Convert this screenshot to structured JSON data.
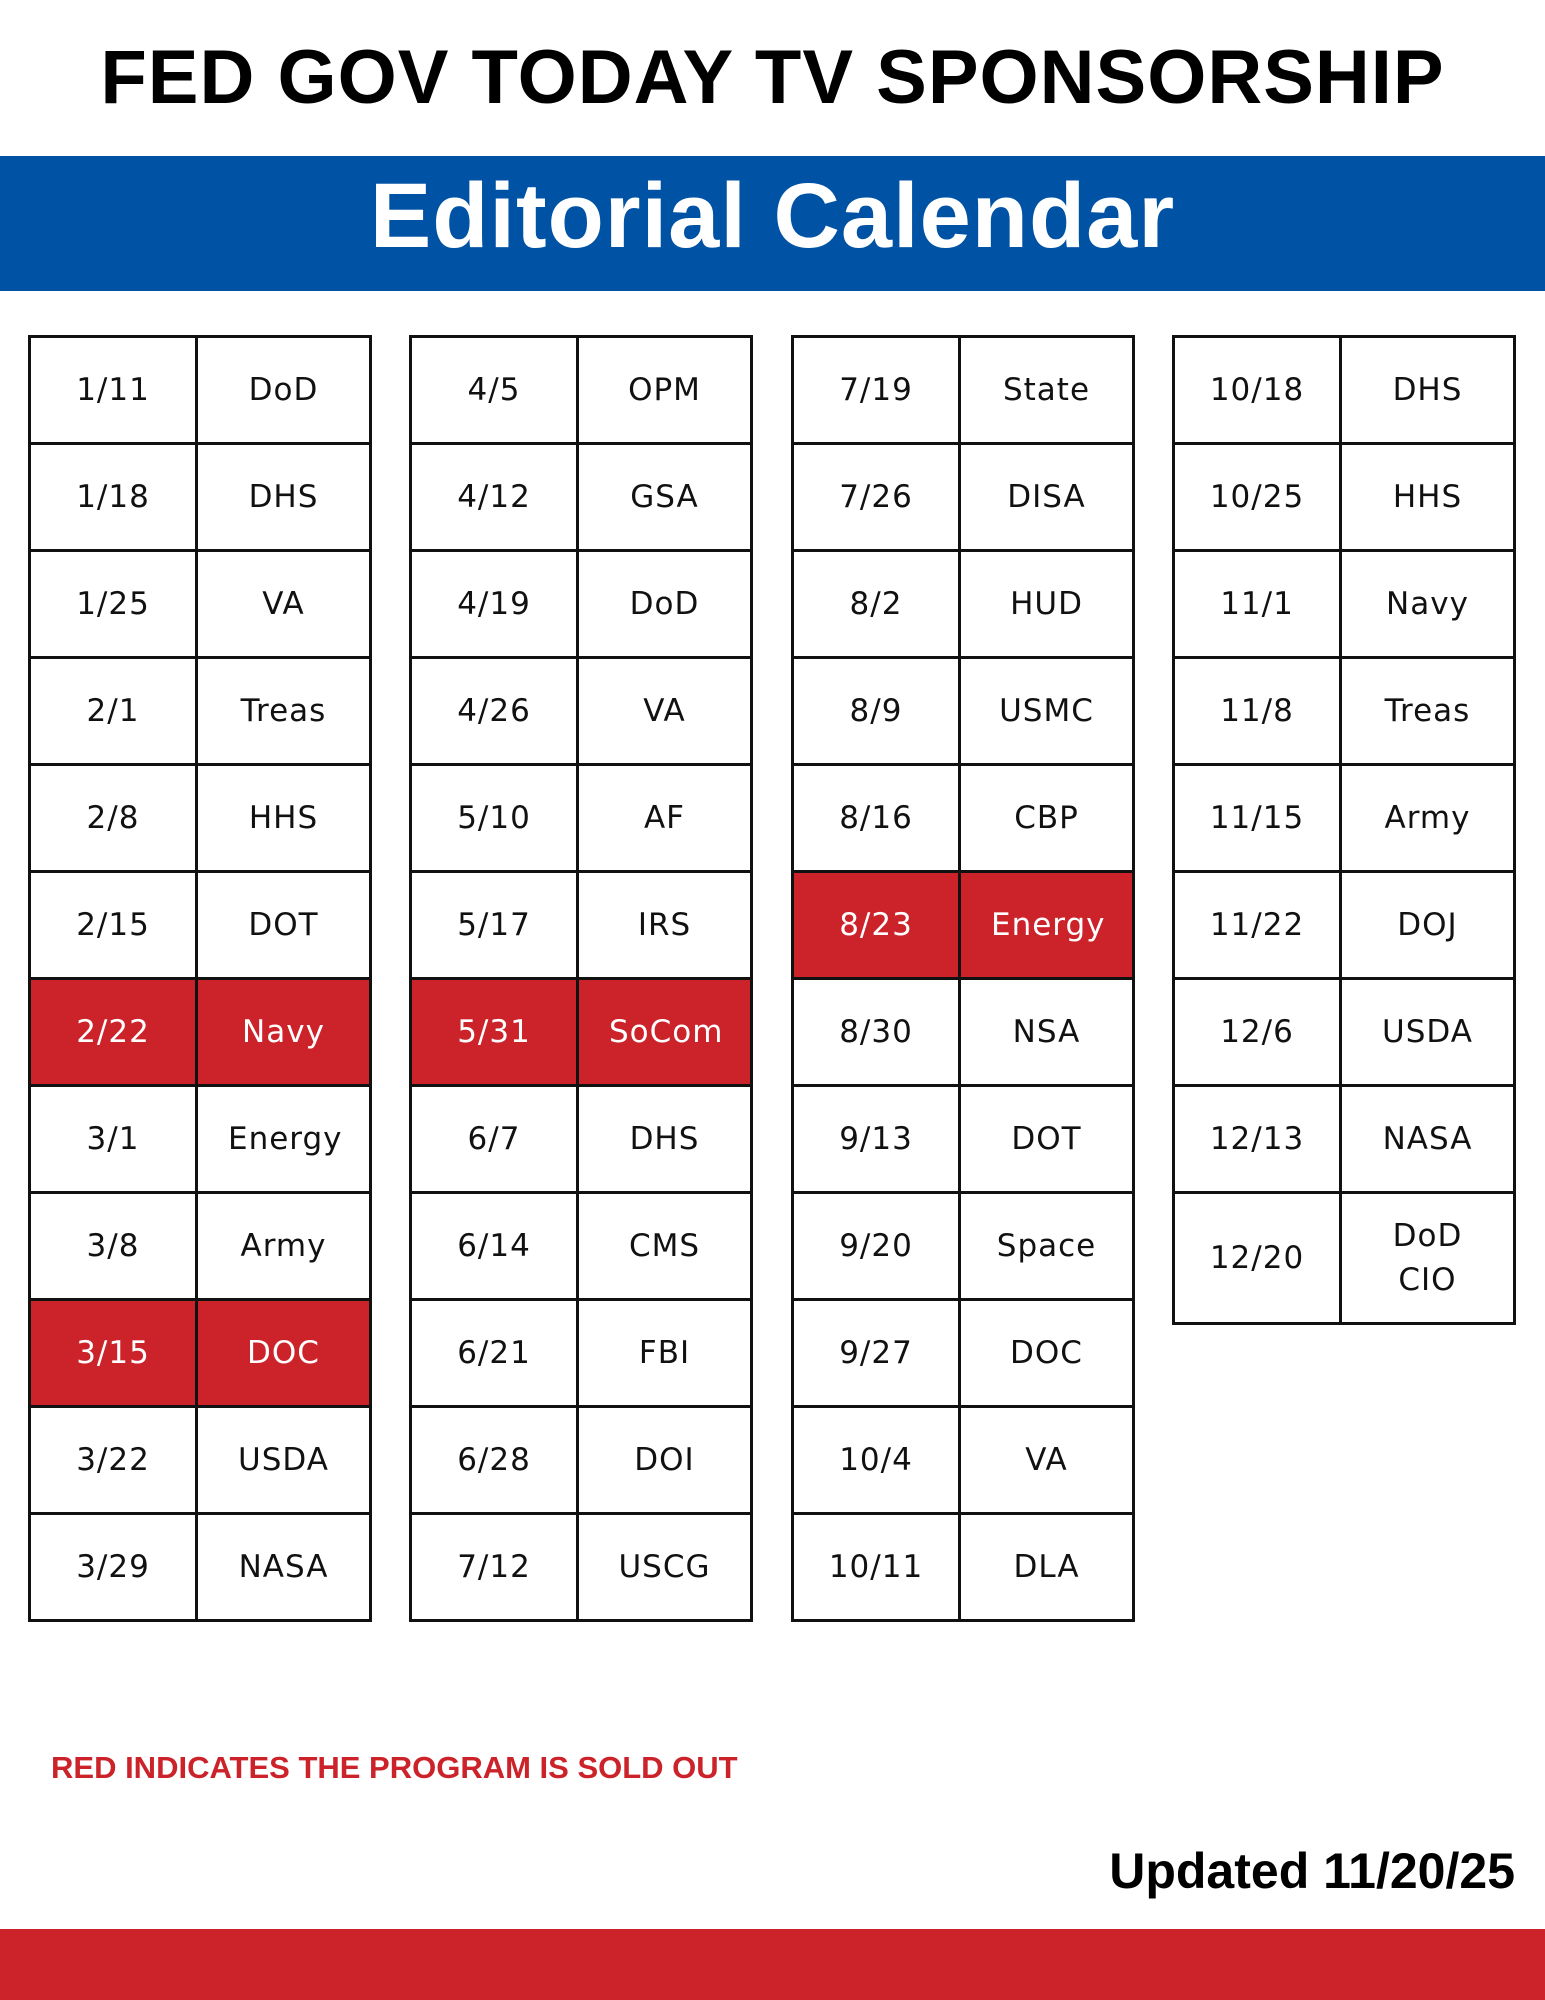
{
  "header": {
    "title": "FED GOV TODAY TV SPONSORSHIP",
    "subtitle": "Editorial Calendar"
  },
  "columns": [
    {
      "rows": [
        {
          "date": "1/11",
          "agency": "DoD",
          "sold_out": false
        },
        {
          "date": "1/18",
          "agency": "DHS",
          "sold_out": false
        },
        {
          "date": "1/25",
          "agency": "VA",
          "sold_out": false
        },
        {
          "date": "2/1",
          "agency": "Treas",
          "sold_out": false
        },
        {
          "date": "2/8",
          "agency": "HHS",
          "sold_out": false
        },
        {
          "date": "2/15",
          "agency": "DOT",
          "sold_out": false
        },
        {
          "date": "2/22",
          "agency": "Navy",
          "sold_out": true
        },
        {
          "date": "3/1",
          "agency": "Energy",
          "sold_out": false
        },
        {
          "date": "3/8",
          "agency": "Army",
          "sold_out": false
        },
        {
          "date": "3/15",
          "agency": "DOC",
          "sold_out": true
        },
        {
          "date": "3/22",
          "agency": "USDA",
          "sold_out": false
        },
        {
          "date": "3/29",
          "agency": "NASA",
          "sold_out": false
        }
      ]
    },
    {
      "rows": [
        {
          "date": "4/5",
          "agency": "OPM",
          "sold_out": false
        },
        {
          "date": "4/12",
          "agency": "GSA",
          "sold_out": false
        },
        {
          "date": "4/19",
          "agency": "DoD",
          "sold_out": false
        },
        {
          "date": "4/26",
          "agency": "VA",
          "sold_out": false
        },
        {
          "date": "5/10",
          "agency": "AF",
          "sold_out": false
        },
        {
          "date": "5/17",
          "agency": "IRS",
          "sold_out": false
        },
        {
          "date": "5/31",
          "agency": "SoCom",
          "sold_out": true
        },
        {
          "date": "6/7",
          "agency": "DHS",
          "sold_out": false
        },
        {
          "date": "6/14",
          "agency": "CMS",
          "sold_out": false
        },
        {
          "date": "6/21",
          "agency": "FBI",
          "sold_out": false
        },
        {
          "date": "6/28",
          "agency": "DOI",
          "sold_out": false
        },
        {
          "date": "7/12",
          "agency": "USCG",
          "sold_out": false
        }
      ]
    },
    {
      "rows": [
        {
          "date": "7/19",
          "agency": "State",
          "sold_out": false
        },
        {
          "date": "7/26",
          "agency": "DISA",
          "sold_out": false
        },
        {
          "date": "8/2",
          "agency": "HUD",
          "sold_out": false
        },
        {
          "date": "8/9",
          "agency": "USMC",
          "sold_out": false
        },
        {
          "date": "8/16",
          "agency": "CBP",
          "sold_out": false
        },
        {
          "date": "8/23",
          "agency": "Energy",
          "sold_out": true
        },
        {
          "date": "8/30",
          "agency": "NSA",
          "sold_out": false
        },
        {
          "date": "9/13",
          "agency": "DOT",
          "sold_out": false
        },
        {
          "date": "9/20",
          "agency": "Space",
          "sold_out": false
        },
        {
          "date": "9/27",
          "agency": "DOC",
          "sold_out": false
        },
        {
          "date": "10/4",
          "agency": "VA",
          "sold_out": false
        },
        {
          "date": "10/11",
          "agency": "DLA",
          "sold_out": false
        }
      ]
    },
    {
      "rows": [
        {
          "date": "10/18",
          "agency": "DHS",
          "sold_out": false
        },
        {
          "date": "10/25",
          "agency": "HHS",
          "sold_out": false
        },
        {
          "date": "11/1",
          "agency": "Navy",
          "sold_out": false
        },
        {
          "date": "11/8",
          "agency": "Treas",
          "sold_out": false
        },
        {
          "date": "11/15",
          "agency": "Army",
          "sold_out": false
        },
        {
          "date": "11/22",
          "agency": "DOJ",
          "sold_out": false
        },
        {
          "date": "12/6",
          "agency": "USDA",
          "sold_out": false
        },
        {
          "date": "12/13",
          "agency": "NASA",
          "sold_out": false
        },
        {
          "date": "12/20",
          "agency": "DoD CIO",
          "sold_out": false
        }
      ]
    }
  ],
  "note": "RED INDICATES THE PROGRAM IS SOLD OUT",
  "updated": "Updated 11/20/25"
}
